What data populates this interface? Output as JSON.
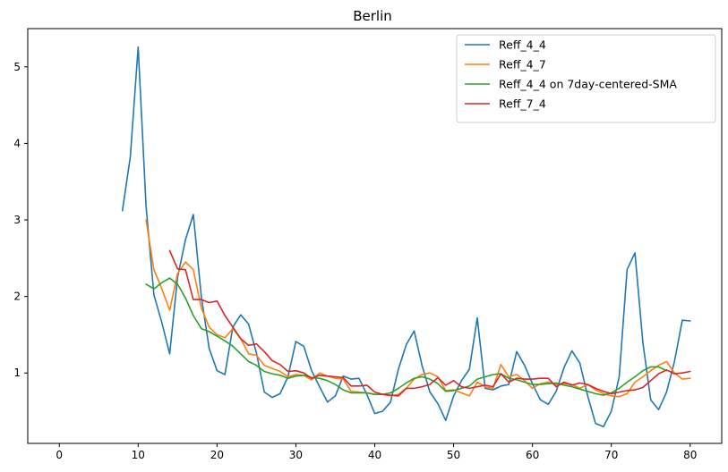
{
  "chart_data": {
    "type": "line",
    "title": "Berlin",
    "xlabel": "",
    "ylabel": "",
    "xlim": [
      -4,
      84
    ],
    "ylim": [
      0.08,
      5.5
    ],
    "xticks": [
      0,
      10,
      20,
      30,
      40,
      50,
      60,
      70,
      80
    ],
    "yticks": [
      1,
      2,
      3,
      4,
      5
    ],
    "grid": false,
    "legend_position": "top-right",
    "series": [
      {
        "name": "Reff_4_4",
        "color": "#1f77b4",
        "x": [
          8,
          9,
          10,
          11,
          12,
          13,
          14,
          15,
          16,
          17,
          18,
          19,
          20,
          21,
          22,
          23,
          24,
          25,
          26,
          27,
          28,
          29,
          30,
          31,
          32,
          33,
          34,
          35,
          36,
          37,
          38,
          39,
          40,
          41,
          42,
          43,
          44,
          45,
          46,
          47,
          48,
          49,
          50,
          51,
          52,
          53,
          54,
          55,
          56,
          57,
          58,
          59,
          60,
          61,
          62,
          63,
          64,
          65,
          66,
          67,
          68,
          69,
          70,
          71,
          72,
          73,
          74,
          75,
          76,
          77,
          78,
          79,
          80
        ],
        "values": [
          3.12,
          3.82,
          5.26,
          3.18,
          2.02,
          1.66,
          1.25,
          2.25,
          2.74,
          3.07,
          2.0,
          1.32,
          1.03,
          0.98,
          1.6,
          1.76,
          1.64,
          1.26,
          0.75,
          0.68,
          0.73,
          0.95,
          1.41,
          1.35,
          1.03,
          0.82,
          0.62,
          0.7,
          0.96,
          0.92,
          0.93,
          0.72,
          0.47,
          0.5,
          0.62,
          1.05,
          1.37,
          1.55,
          1.1,
          0.75,
          0.6,
          0.38,
          0.7,
          0.9,
          1.05,
          1.72,
          0.8,
          0.78,
          0.83,
          0.85,
          1.28,
          1.1,
          0.86,
          0.65,
          0.59,
          0.76,
          1.07,
          1.29,
          1.13,
          0.7,
          0.34,
          0.3,
          0.5,
          0.95,
          2.35,
          2.57,
          1.4,
          0.65,
          0.52,
          0.75,
          1.15,
          1.69,
          1.68
        ]
      },
      {
        "name": "Reff_4_7",
        "color": "#ff7f0e",
        "x": [
          11,
          12,
          13,
          14,
          15,
          16,
          17,
          18,
          19,
          20,
          21,
          22,
          23,
          24,
          25,
          26,
          27,
          28,
          29,
          30,
          31,
          32,
          33,
          34,
          35,
          36,
          37,
          38,
          39,
          40,
          41,
          42,
          43,
          44,
          45,
          46,
          47,
          48,
          49,
          50,
          51,
          52,
          53,
          54,
          55,
          56,
          57,
          58,
          59,
          60,
          61,
          62,
          63,
          64,
          65,
          66,
          67,
          68,
          69,
          70,
          71,
          72,
          73,
          74,
          75,
          76,
          77,
          78,
          79,
          80
        ],
        "values": [
          3.0,
          2.35,
          2.1,
          1.82,
          2.3,
          2.45,
          2.35,
          1.85,
          1.6,
          1.5,
          1.46,
          1.58,
          1.45,
          1.25,
          1.23,
          1.1,
          1.06,
          1.02,
          0.95,
          0.98,
          0.97,
          0.91,
          1.0,
          0.96,
          0.93,
          0.92,
          0.76,
          0.75,
          0.74,
          0.72,
          0.72,
          0.7,
          0.72,
          0.8,
          0.92,
          0.98,
          1.0,
          0.95,
          0.77,
          0.78,
          0.74,
          0.7,
          0.88,
          0.82,
          0.8,
          1.11,
          0.95,
          0.98,
          0.9,
          0.8,
          0.86,
          0.88,
          0.85,
          0.86,
          0.85,
          0.8,
          0.85,
          0.78,
          0.73,
          0.7,
          0.69,
          0.73,
          0.88,
          0.95,
          1.03,
          1.1,
          1.15,
          1.0,
          0.92,
          0.93
        ]
      },
      {
        "name": "Reff_4_4 on 7day-centered-SMA",
        "color": "#2ca02c",
        "x": [
          11,
          12,
          13,
          14,
          15,
          16,
          17,
          18,
          19,
          20,
          21,
          22,
          23,
          24,
          25,
          26,
          27,
          28,
          29,
          30,
          31,
          32,
          33,
          34,
          35,
          36,
          37,
          38,
          39,
          40,
          41,
          42,
          43,
          44,
          45,
          46,
          47,
          48,
          49,
          50,
          51,
          52,
          53,
          54,
          55,
          56,
          57,
          58,
          59,
          60,
          61,
          62,
          63,
          64,
          65,
          66,
          67,
          68,
          69,
          70,
          71,
          72,
          73,
          74,
          75,
          76,
          77
        ],
        "values": [
          2.16,
          2.1,
          2.18,
          2.24,
          2.16,
          1.98,
          1.75,
          1.58,
          1.54,
          1.48,
          1.42,
          1.35,
          1.25,
          1.15,
          1.1,
          1.02,
          0.99,
          0.97,
          0.93,
          0.96,
          0.97,
          0.94,
          0.93,
          0.9,
          0.85,
          0.78,
          0.74,
          0.74,
          0.74,
          0.72,
          0.72,
          0.74,
          0.8,
          0.87,
          0.93,
          0.95,
          0.92,
          0.86,
          0.76,
          0.77,
          0.8,
          0.83,
          0.92,
          0.95,
          0.98,
          0.99,
          0.93,
          0.91,
          0.88,
          0.85,
          0.85,
          0.86,
          0.87,
          0.84,
          0.82,
          0.79,
          0.76,
          0.73,
          0.71,
          0.74,
          0.8,
          0.88,
          0.95,
          1.03,
          1.08,
          1.08,
          1.03
        ]
      },
      {
        "name": "Reff_7_4",
        "color": "#d62728",
        "x": [
          14,
          15,
          16,
          17,
          18,
          19,
          20,
          21,
          22,
          23,
          24,
          25,
          26,
          27,
          28,
          29,
          30,
          31,
          32,
          33,
          34,
          35,
          36,
          37,
          38,
          39,
          40,
          41,
          42,
          43,
          44,
          45,
          46,
          47,
          48,
          49,
          50,
          51,
          52,
          53,
          54,
          55,
          56,
          57,
          58,
          59,
          60,
          61,
          62,
          63,
          64,
          65,
          66,
          67,
          68,
          69,
          70,
          71,
          72,
          73,
          74,
          75,
          76,
          77,
          78,
          79,
          80
        ],
        "values": [
          2.6,
          2.36,
          2.35,
          1.96,
          1.96,
          1.92,
          1.94,
          1.75,
          1.6,
          1.45,
          1.36,
          1.38,
          1.28,
          1.16,
          1.11,
          1.02,
          1.03,
          1.0,
          0.93,
          0.97,
          0.96,
          0.95,
          0.94,
          0.83,
          0.83,
          0.84,
          0.75,
          0.72,
          0.71,
          0.7,
          0.8,
          0.8,
          0.82,
          0.85,
          0.94,
          0.84,
          0.9,
          0.82,
          0.8,
          0.82,
          0.84,
          0.82,
          0.99,
          0.88,
          0.93,
          0.92,
          0.92,
          0.93,
          0.93,
          0.82,
          0.88,
          0.84,
          0.87,
          0.85,
          0.8,
          0.76,
          0.73,
          0.75,
          0.77,
          0.78,
          0.81,
          0.9,
          0.99,
          1.04,
          0.99,
          1.0,
          1.02
        ]
      }
    ]
  }
}
